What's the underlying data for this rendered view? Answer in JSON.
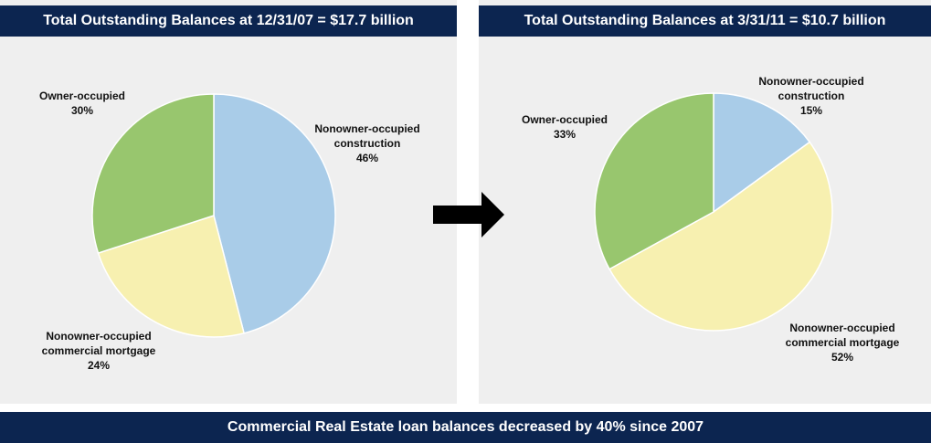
{
  "chart_data": [
    {
      "type": "pie",
      "title": "Total Outstanding Balances at 12/31/07 = $17.7 billion",
      "categories": [
        "Nonowner-occupied construction",
        "Nonowner-occupied commercial mortgage",
        "Owner-occupied"
      ],
      "values": [
        46,
        24,
        30
      ],
      "value_labels": [
        "46%",
        "24%",
        "30%"
      ],
      "colors": [
        "#a9cce8",
        "#f7f0b0",
        "#98c66e"
      ]
    },
    {
      "type": "pie",
      "title": "Total Outstanding Balances at 3/31/11 = $10.7 billion",
      "categories": [
        "Nonowner-occupied construction",
        "Nonowner-occupied commercial mortgage",
        "Owner-occupied"
      ],
      "values": [
        15,
        52,
        33
      ],
      "value_labels": [
        "15%",
        "52%",
        "33%"
      ],
      "colors": [
        "#a9cce8",
        "#f7f0b0",
        "#98c66e"
      ]
    }
  ],
  "footer": "Commercial Real Estate loan balances decreased by 40% since 2007"
}
